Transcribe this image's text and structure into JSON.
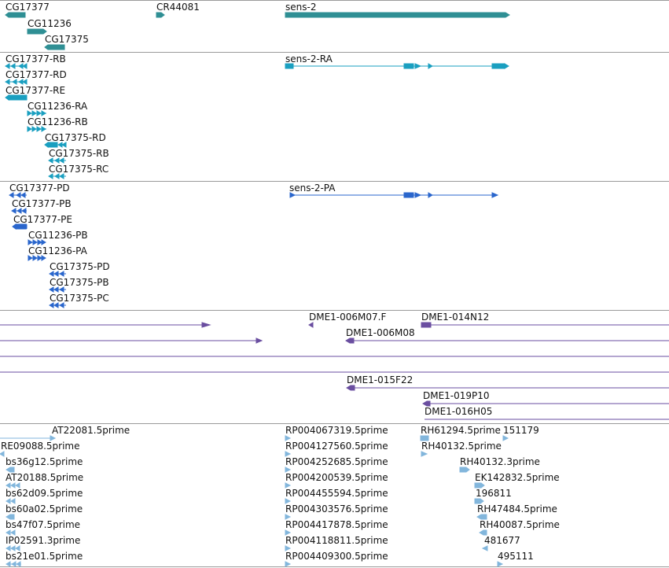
{
  "colors": {
    "gene": "#2f8f94",
    "transcript": "#1a9fc0",
    "protein": "#2a66cc",
    "clone": "#6a4ea0",
    "est": "#82b6dc",
    "separator": "#9a9a9a"
  },
  "tracks": {
    "genes": {
      "labels": [
        "CG17377",
        "CR44081",
        "sens-2",
        "CG11236",
        "CG17375"
      ]
    },
    "transcripts": {
      "labels": [
        "CG17377-RB",
        "sens-2-RA",
        "CG17377-RD",
        "CG17377-RE",
        "CG11236-RA",
        "CG11236-RB",
        "CG17375-RD",
        "CG17375-RB",
        "CG17375-RC"
      ]
    },
    "proteins": {
      "labels": [
        "CG17377-PD",
        "sens-2-PA",
        "CG17377-PB",
        "CG17377-PE",
        "CG11236-PB",
        "CG11236-PA",
        "CG17375-PD",
        "CG17375-PB",
        "CG17375-PC"
      ]
    },
    "bac_clones": {
      "labels": [
        "DME1-006M07.F",
        "DME1-014N12",
        "DME1-006M08",
        "DME1-015F22",
        "DME1-019P10",
        "DME1-016H05"
      ]
    },
    "ests": {
      "labels": [
        "AT22081.5prime",
        "RP004067319.5prime",
        "RH61294.5prime",
        "151179",
        "RE09088.5prime",
        "RP004127560.5prime",
        "RH40132.5prime",
        "bs36g12.5prime",
        "RP004252685.5prime",
        "RH40132.3prime",
        "AT20188.5prime",
        "RP004200539.5prime",
        "EK142832.5prime",
        "bs62d09.5prime",
        "RP004455594.5prime",
        "196811",
        "bs60a02.5prime",
        "RP004303576.5prime",
        "RH47484.5prime",
        "bs47f07.5prime",
        "RP004417878.5prime",
        "RH40087.5prime",
        "IP02591.3prime",
        "RP004118811.5prime",
        "481677",
        "bs21e01.5prime",
        "RP004409300.5prime",
        "495111"
      ]
    }
  }
}
